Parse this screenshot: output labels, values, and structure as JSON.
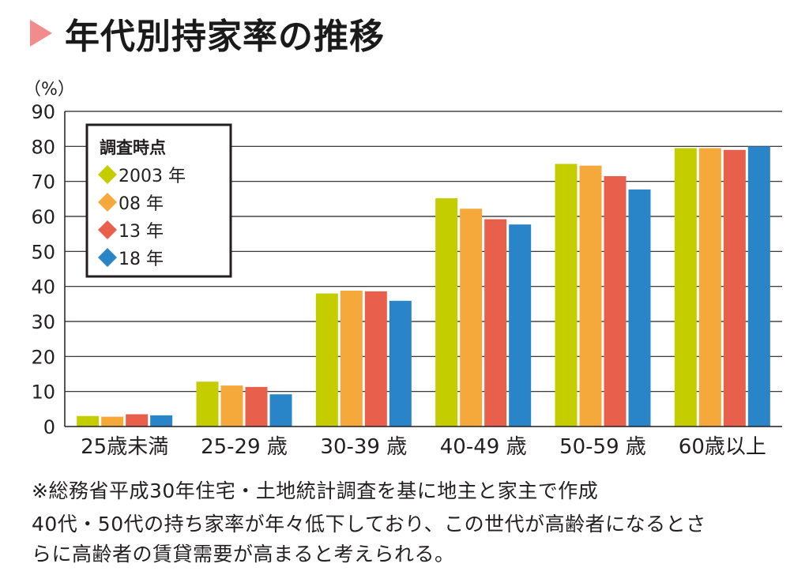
{
  "page_title": "年代別持家率の推移",
  "chart_data": {
    "type": "bar",
    "unit_label": "（%）",
    "categories": [
      "25歳未満",
      "25-29 歳",
      "30-39 歳",
      "40-49 歳",
      "50-59 歳",
      "60歳以上"
    ],
    "series": [
      {
        "name": "2003 年",
        "color": "#c4cd00",
        "values": [
          3.0,
          12.8,
          38.0,
          65.2,
          75.0,
          79.5
        ]
      },
      {
        "name": "08 年",
        "color": "#f6a93b",
        "values": [
          2.8,
          11.7,
          38.8,
          62.2,
          74.5,
          79.5
        ]
      },
      {
        "name": "13 年",
        "color": "#e8604c",
        "values": [
          3.5,
          11.3,
          38.6,
          59.2,
          71.5,
          79.0
        ]
      },
      {
        "name": "18 年",
        "color": "#2a84c8",
        "values": [
          3.2,
          9.2,
          35.9,
          57.7,
          67.7,
          80.0
        ]
      }
    ],
    "ylim": [
      0,
      90
    ],
    "yticks": [
      0,
      10,
      20,
      30,
      40,
      50,
      60,
      70,
      80,
      90
    ],
    "legend_title": "調査時点",
    "legend_position": "top-left"
  },
  "notes": {
    "line1": "※総務省平成30年住宅・土地統計調査を基に地主と家主で作成",
    "line2": "40代・50代の持ち家率が年々低下しており、この世代が高齢者になるとさ",
    "line3": "らに高齢者の賃貸需要が高まると考えられる。"
  }
}
